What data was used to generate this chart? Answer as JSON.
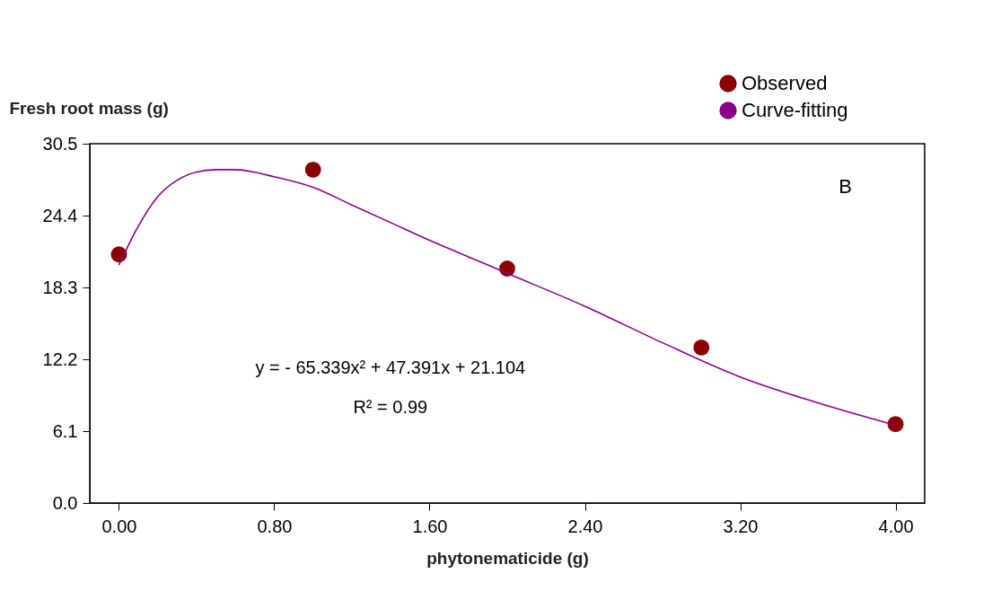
{
  "chart_data": {
    "type": "scatter",
    "xlabel": "phytonematicide (g)",
    "ylabel": "Fresh root mass (g)",
    "xlim": [
      -0.15,
      4.15
    ],
    "xticks": [
      {
        "value": 0,
        "label": "0.00"
      },
      {
        "value": 0.8,
        "label": "0.80"
      },
      {
        "value": 1.6,
        "label": "1.60"
      },
      {
        "value": 2.4,
        "label": "2.40"
      },
      {
        "value": 3.2,
        "label": "3.20"
      },
      {
        "value": 4,
        "label": "4.00"
      }
    ],
    "ylim": [
      0,
      30.5
    ],
    "yticks": [
      {
        "value": 0,
        "label": "0.0"
      },
      6.1,
      12.2,
      18.3,
      24.4,
      30.5
    ],
    "grid": false,
    "legend": "top right",
    "series": [
      {
        "name": "Observed",
        "marker": "circle",
        "color": "#8b0000",
        "x": [
          0,
          1,
          2,
          3,
          4
        ],
        "values": [
          21.1,
          28.3,
          19.9,
          13.2,
          6.7
        ]
      },
      {
        "name": "Curve-fitting",
        "type": "line",
        "color": "#8b008b",
        "marker": "none",
        "line_style": "solid",
        "x": [
          0,
          0.1,
          0.2,
          0.3,
          0.4,
          0.5,
          0.6,
          0.8,
          1.0,
          1.2,
          1.4,
          1.6,
          1.8,
          2.0,
          2.4,
          2.8,
          3.2,
          3.6,
          4.0
        ],
        "values": [
          20.2,
          23.5,
          26.0,
          27.4,
          28.1,
          28.3,
          28.3,
          27.7,
          26.8,
          25.3,
          23.8,
          22.3,
          20.9,
          19.5,
          16.7,
          13.6,
          10.7,
          8.5,
          6.6
        ]
      }
    ],
    "annotations": [
      "B",
      "y = - 65.339x² + 47.391x + 21.104",
      "R² = 0.99"
    ]
  }
}
